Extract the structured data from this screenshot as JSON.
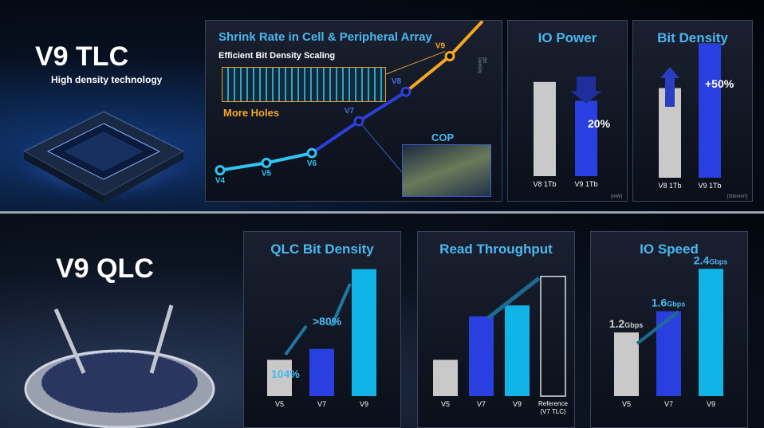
{
  "top": {
    "title": "V9 TLC",
    "subtitle": "High density technology"
  },
  "bottom": {
    "title": "V9 QLC"
  },
  "shrink": {
    "title": "Shrink Rate in Cell & Peripheral Array",
    "subtitle": "Efficient Bit Density Scaling",
    "more_holes": "More Holes",
    "cop": "COP",
    "axis_label": "Bit Density",
    "colors": {
      "line_low": "#2fc5f5",
      "line_mid": "#2e3fd9",
      "line_high": "#f5a623"
    }
  },
  "chart_data": [
    {
      "type": "line",
      "title": "Shrink Rate in Cell & Peripheral Array",
      "subtitle": "Efficient Bit Density Scaling",
      "ylabel": "Bit Density",
      "categories": [
        "V4",
        "V5",
        "V6",
        "V7",
        "V8",
        "V9"
      ],
      "values": [
        1,
        1.6,
        2.4,
        5.0,
        7.4,
        10.3
      ],
      "ylim": [
        0,
        13
      ]
    },
    {
      "type": "bar",
      "title": "IO Power",
      "categories": [
        "V8 1Tb",
        "V9 1Tb"
      ],
      "values": [
        100,
        80
      ],
      "annotation": "20%",
      "unit": "[mW]",
      "ylim": [
        0,
        110
      ]
    },
    {
      "type": "bar",
      "title": "Bit Density",
      "categories": [
        "V8 1Tb",
        "V9 1Tb"
      ],
      "values": [
        100,
        150
      ],
      "annotation": "+50%",
      "unit": "[Gb/mm²]",
      "ylim": [
        0,
        160
      ]
    },
    {
      "type": "bar",
      "title": "QLC Bit Density",
      "categories": [
        "V5",
        "V7",
        "V9"
      ],
      "values": [
        1,
        1.3,
        3.5
      ],
      "annotations": [
        "104%",
        ">80%"
      ],
      "ylim": [
        0,
        3.8
      ]
    },
    {
      "type": "bar",
      "title": "Read Throughput",
      "categories": [
        "V5",
        "V7",
        "V9",
        "Reference (V7 TLC)"
      ],
      "values": [
        1,
        2.2,
        2.5,
        3.3
      ],
      "ylim": [
        0,
        3.8
      ]
    },
    {
      "type": "bar",
      "title": "IO Speed",
      "categories": [
        "V5",
        "V7",
        "V9"
      ],
      "values": [
        1.2,
        1.6,
        2.4
      ],
      "value_labels": [
        "1.2",
        "1.6",
        "2.4"
      ],
      "unit": "Gbps",
      "ylim": [
        0,
        2.9
      ]
    }
  ]
}
